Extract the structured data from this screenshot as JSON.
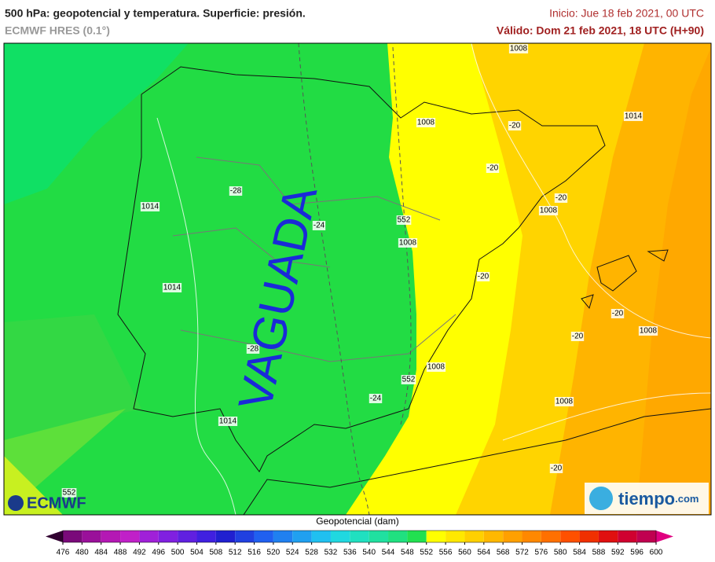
{
  "header": {
    "title": "500 hPa: geopotencial y temperatura. Superficie: presión.",
    "model": "ECMWF HRES (0.1°)",
    "init": "Inicio: Jue 18 feb 2021, 00 UTC",
    "valid": "Válido: Dom 21 feb 2021, 18 UTC (H+90)"
  },
  "map": {
    "annotation": "VAGUADA",
    "labels": [
      "1008",
      "1008",
      "1014",
      "-20",
      "-20",
      "-20",
      "1008",
      "1014",
      "-28",
      "-24",
      "552",
      "1008",
      "-20",
      "1014",
      "-20",
      "-20",
      "1008",
      "-28",
      "552",
      "1008",
      "-24",
      "1008",
      "1014",
      "-20",
      "552"
    ]
  },
  "colorbar": {
    "title": "Geopotencial (dam)",
    "ticks": [
      476,
      480,
      484,
      488,
      492,
      496,
      500,
      504,
      508,
      512,
      516,
      520,
      524,
      528,
      532,
      536,
      540,
      544,
      548,
      552,
      556,
      560,
      564,
      568,
      572,
      576,
      580,
      584,
      588,
      592,
      596,
      600
    ],
    "colors": [
      "#7a0a7a",
      "#9a109a",
      "#b418b4",
      "#c020c8",
      "#a020d8",
      "#8020e0",
      "#6020e0",
      "#4020e0",
      "#2020d0",
      "#2040e0",
      "#2060f0",
      "#2080f0",
      "#20a0f0",
      "#20c0f0",
      "#20d8e0",
      "#20e0c0",
      "#20e0a0",
      "#20e080",
      "#22e050",
      "#ffff00",
      "#ffe800",
      "#ffd000",
      "#ffb800",
      "#ffa000",
      "#ff8800",
      "#ff7000",
      "#ff5000",
      "#f03000",
      "#e01010",
      "#d00030",
      "#c00050"
    ],
    "under": "#300030",
    "over": "#e00080"
  },
  "logos": {
    "left": "ECMWF",
    "right": "tiempo",
    "right_suffix": ".com"
  }
}
